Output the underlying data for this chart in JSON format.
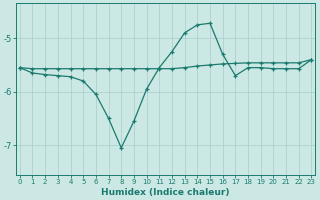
{
  "x": [
    0,
    1,
    2,
    3,
    4,
    5,
    6,
    7,
    8,
    9,
    10,
    11,
    12,
    13,
    14,
    15,
    16,
    17,
    18,
    19,
    20,
    21,
    22,
    23
  ],
  "line_flat": [
    -5.55,
    -5.57,
    -5.57,
    -5.57,
    -5.57,
    -5.57,
    -5.57,
    -5.57,
    -5.57,
    -5.57,
    -5.57,
    -5.57,
    -5.57,
    -5.55,
    -5.52,
    -5.5,
    -5.48,
    -5.47,
    -5.46,
    -5.46,
    -5.46,
    -5.46,
    -5.46,
    -5.4
  ],
  "line_wavy": [
    -5.55,
    -5.65,
    -5.68,
    -5.7,
    -5.72,
    -5.8,
    -6.05,
    -6.5,
    -7.05,
    -6.55,
    -5.95,
    -5.55,
    -5.25,
    -4.9,
    -4.75,
    -4.72,
    -5.3,
    -5.7,
    -5.55,
    -5.55,
    -5.57,
    -5.57,
    -5.57,
    -5.4
  ],
  "color": "#1a7a6e",
  "bg_color": "#cce8e5",
  "grid_color": "#a8cdc9",
  "xlabel": "Humidex (Indice chaleur)",
  "ylim": [
    -7.55,
    -4.35
  ],
  "xlim": [
    -0.3,
    23.3
  ],
  "yticks": [
    -7,
    -6,
    -5
  ],
  "xticks": [
    0,
    1,
    2,
    3,
    4,
    5,
    6,
    7,
    8,
    9,
    10,
    11,
    12,
    13,
    14,
    15,
    16,
    17,
    18,
    19,
    20,
    21,
    22,
    23
  ]
}
